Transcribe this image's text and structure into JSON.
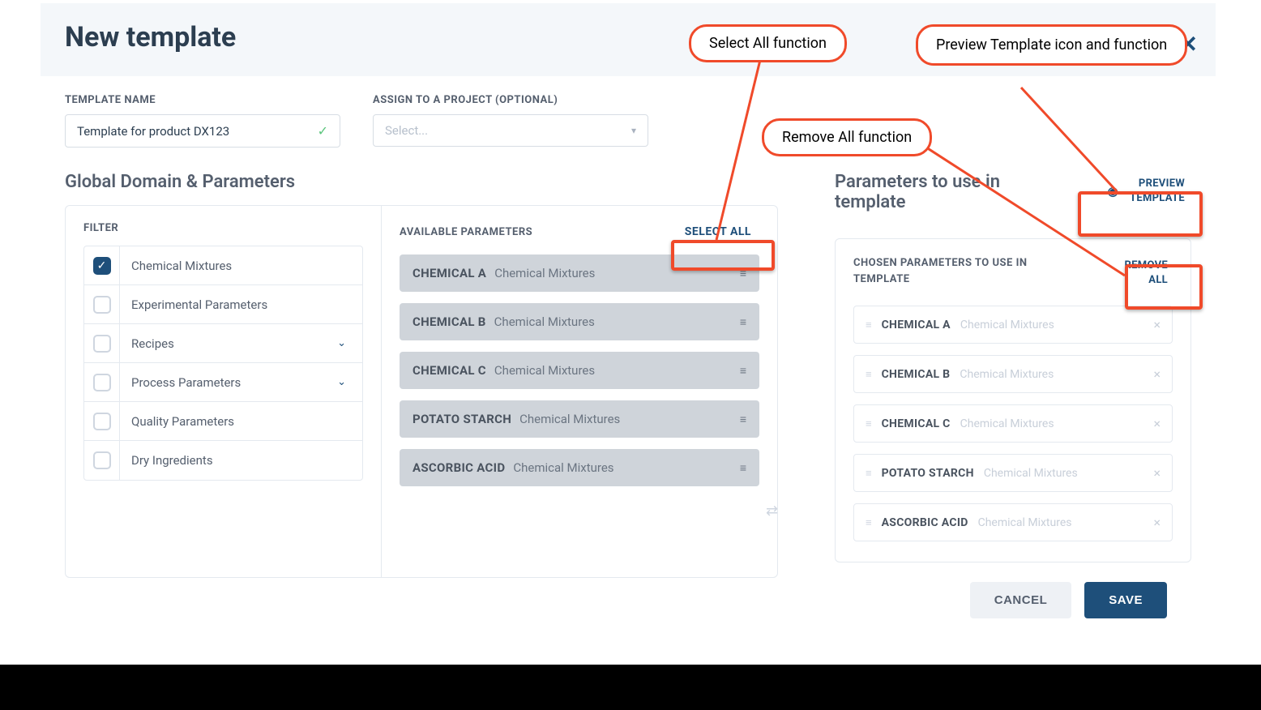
{
  "header": {
    "title": "New template"
  },
  "form": {
    "template_name_label": "TEMPLATE NAME",
    "template_name_value": "Template for product DX123",
    "assign_project_label": "ASSIGN TO A PROJECT (OPTIONAL)",
    "assign_project_placeholder": "Select..."
  },
  "left": {
    "section_title": "Global Domain & Parameters",
    "filter_heading": "FILTER",
    "filters": [
      {
        "label": "Chemical Mixtures",
        "checked": true,
        "expandable": false
      },
      {
        "label": "Experimental Parameters",
        "checked": false,
        "expandable": false
      },
      {
        "label": "Recipes",
        "checked": false,
        "expandable": true
      },
      {
        "label": "Process Parameters",
        "checked": false,
        "expandable": true
      },
      {
        "label": "Quality Parameters",
        "checked": false,
        "expandable": false
      },
      {
        "label": "Dry Ingredients",
        "checked": false,
        "expandable": false
      }
    ],
    "available_heading": "AVAILABLE PARAMETERS",
    "select_all_label": "SELECT ALL",
    "available": [
      {
        "name": "CHEMICAL A",
        "category": "Chemical Mixtures"
      },
      {
        "name": "CHEMICAL B",
        "category": "Chemical Mixtures"
      },
      {
        "name": "CHEMICAL C",
        "category": "Chemical Mixtures"
      },
      {
        "name": "POTATO STARCH",
        "category": "Chemical Mixtures"
      },
      {
        "name": "ASCORBIC ACID",
        "category": "Chemical Mixtures"
      }
    ]
  },
  "right": {
    "section_title": "Parameters to use in template",
    "preview_label_line1": "PREVIEW",
    "preview_label_line2": "TEMPLATE",
    "chosen_heading": "CHOSEN PARAMETERS TO USE IN TEMPLATE",
    "remove_all_line1": "REMOVE",
    "remove_all_line2": "ALL",
    "chosen": [
      {
        "name": "CHEMICAL A",
        "category": "Chemical Mixtures"
      },
      {
        "name": "CHEMICAL B",
        "category": "Chemical Mixtures"
      },
      {
        "name": "CHEMICAL C",
        "category": "Chemical Mixtures"
      },
      {
        "name": "POTATO STARCH",
        "category": "Chemical Mixtures"
      },
      {
        "name": "ASCORBIC ACID",
        "category": "Chemical Mixtures"
      }
    ]
  },
  "footer": {
    "cancel": "CANCEL",
    "save": "SAVE"
  },
  "annotations": {
    "select_all": "Select All function",
    "remove_all": "Remove All function",
    "preview": "Preview Template icon and function"
  },
  "colors": {
    "primary": "#1e4f7a",
    "callout_border": "#f04a2a",
    "panel_border": "#e4e9ef",
    "muted_text": "#555f6e",
    "avail_bg": "#cfd4da"
  }
}
